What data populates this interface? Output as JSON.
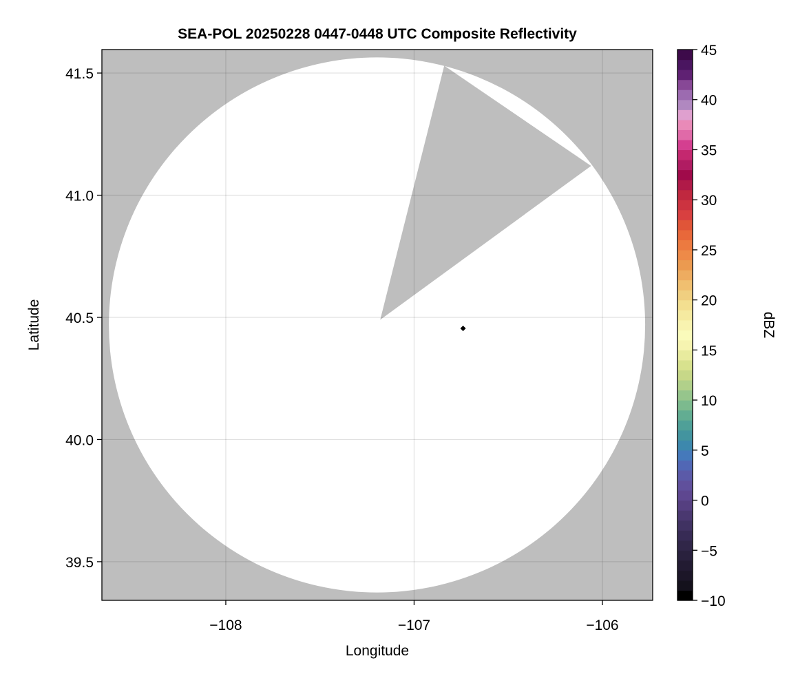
{
  "chart_data": {
    "type": "heatmap",
    "title": "SEA-POL 20250228 0447-0448 UTC Composite Reflectivity",
    "xlabel": "Longitude",
    "ylabel": "Latitude",
    "xlim": [
      -108.658,
      -105.733
    ],
    "ylim": [
      39.342,
      41.596
    ],
    "xticks": [
      -108,
      -107,
      -106
    ],
    "xtick_labels": [
      "−108",
      "−107",
      "−106"
    ],
    "yticks": [
      39.5,
      40.0,
      40.5,
      41.0,
      41.5
    ],
    "ytick_labels": [
      "39.5",
      "40.0",
      "40.5",
      "41.0",
      "41.5"
    ],
    "grid": true,
    "background_color": "#bebebe",
    "radar_coverage": {
      "center": [
        -107.197,
        40.469
      ],
      "radius_lon_deg": 1.424,
      "radius_lat_deg": 1.095,
      "fill": "#ffffff",
      "blocked_sector": [
        [
          -107.18,
          40.49
        ],
        [
          -106.84,
          41.53
        ],
        [
          -106.06,
          41.12
        ]
      ]
    },
    "marker": {
      "lon": -106.74,
      "lat": 40.455,
      "color": "#000000"
    },
    "colorbar": {
      "label": "dBZ",
      "range": [
        -10,
        45
      ],
      "ticks": [
        -10,
        -5,
        0,
        5,
        10,
        15,
        20,
        25,
        30,
        35,
        40,
        45
      ],
      "tick_labels": [
        "−10",
        "−5",
        "0",
        "5",
        "10",
        "15",
        "20",
        "25",
        "30",
        "35",
        "40",
        "45"
      ],
      "colors_low_to_high": [
        "#000000",
        "#14111c",
        "#1c1628",
        "#221b32",
        "#29213d",
        "#302648",
        "#372b55",
        "#403262",
        "#4a3870",
        "#553f80",
        "#5e4790",
        "#60509c",
        "#5b5aa8",
        "#5167b5",
        "#4579bb",
        "#3d88ad",
        "#43949f",
        "#4fa098",
        "#62ad92",
        "#7cba8e",
        "#96c58c",
        "#b1d08a",
        "#c7d888",
        "#d8e28e",
        "#e8eb9e",
        "#f6f4b0",
        "#fafbbb",
        "#f8f3b0",
        "#f5eaa0",
        "#f3df90",
        "#f0cf80",
        "#f0bf70",
        "#eeac60",
        "#eb9a50",
        "#ee8a48",
        "#ec7a40",
        "#e8683a",
        "#e05538",
        "#d84040",
        "#cc3340",
        "#c0283f",
        "#b01a48",
        "#a00a4a",
        "#b01c62",
        "#c4286f",
        "#d43f90",
        "#e06aa8",
        "#e98ab8",
        "#dfa0cf",
        "#b088c0",
        "#9c6bb0",
        "#874896",
        "#5f2173",
        "#4a1560",
        "#3d0a4a"
      ]
    }
  }
}
